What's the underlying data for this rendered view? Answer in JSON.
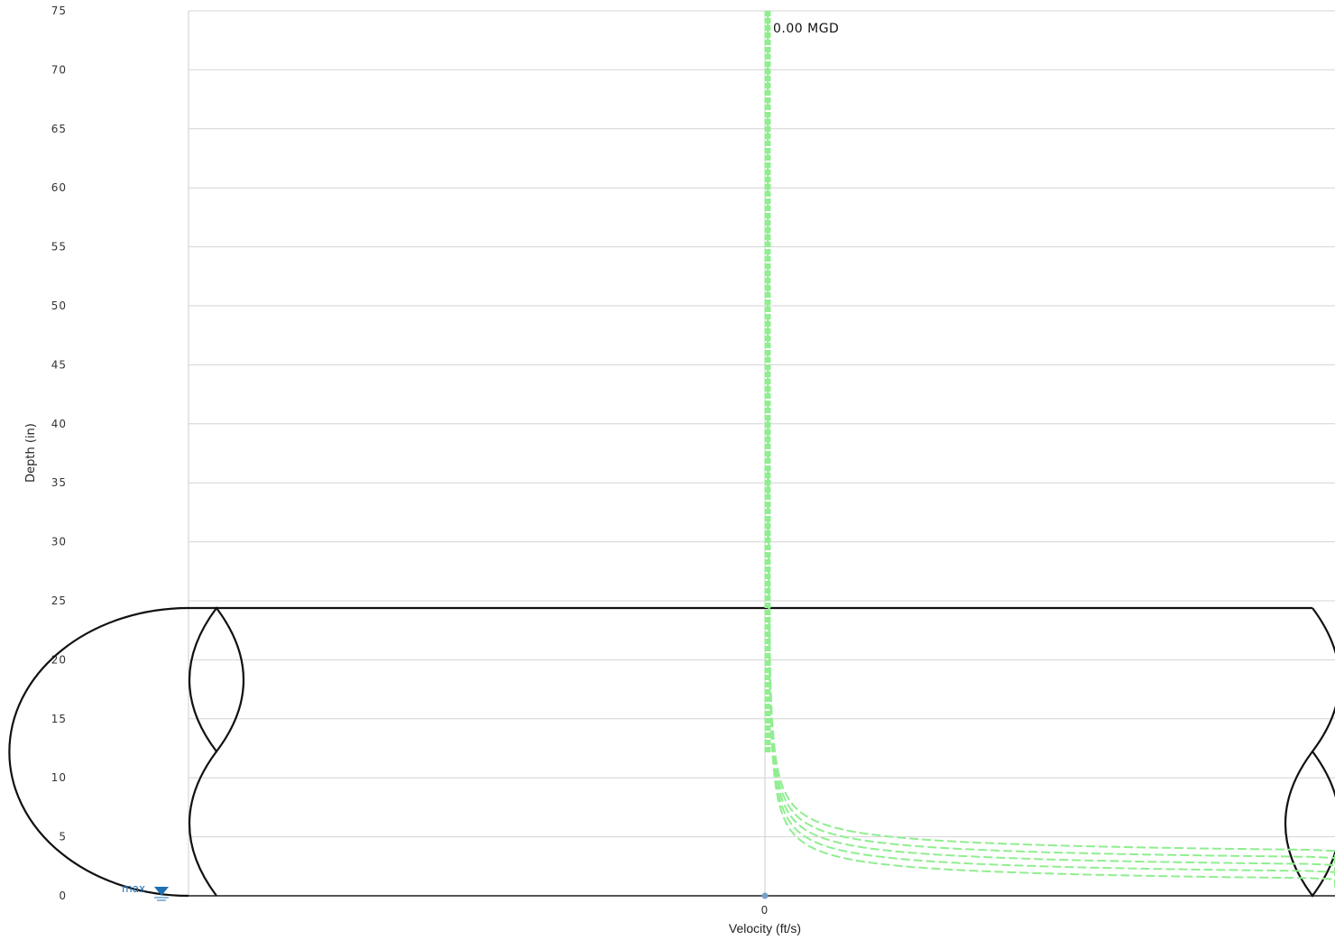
{
  "chart_data": {
    "type": "line",
    "title": "",
    "xlabel": "Velocity (ft/s)",
    "ylabel": "Depth (in)",
    "x_ticks": [
      "0"
    ],
    "y_ticks": [
      0,
      5,
      10,
      15,
      20,
      25,
      30,
      35,
      40,
      45,
      50,
      55,
      60,
      65,
      70,
      75
    ],
    "ylim": [
      0,
      75
    ],
    "grid": true,
    "legend": "none",
    "annotations": {
      "flow_label": "0.00 MGD",
      "max_label": "max"
    },
    "pipe_depth": 24.4,
    "colors": {
      "curve": "#90ee90",
      "pipe": "#111111",
      "grid": "#d4d4d4",
      "max_marker": "#1f6fb5"
    },
    "series": [
      {
        "offset": 0.6
      },
      {
        "offset": 1.2
      },
      {
        "offset": 1.8
      },
      {
        "offset": 2.4
      },
      {
        "offset": 3.0
      }
    ]
  }
}
